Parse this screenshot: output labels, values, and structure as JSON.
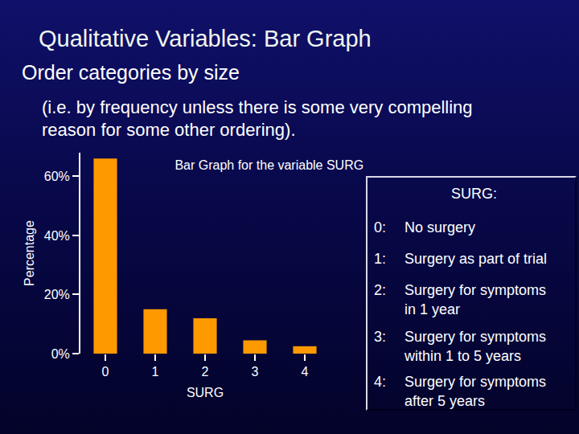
{
  "slide": {
    "heading": "Qualitative Variables: Bar Graph",
    "subheading": "Order categories by size",
    "note": "(i.e. by frequency unless there is some very compelling reason for some other ordering)."
  },
  "key": {
    "title": "SURG:",
    "items": [
      {
        "code": "0:",
        "label": "No surgery"
      },
      {
        "code": "1:",
        "label": "Surgery as part of trial"
      },
      {
        "code": "2:",
        "label": "Surgery for symptoms in 1 year"
      },
      {
        "code": "3:",
        "label": "Surgery for symptoms within 1 to 5 years"
      },
      {
        "code": "4:",
        "label": "Surgery for symptoms after 5 years"
      }
    ]
  },
  "chart_data": {
    "type": "bar",
    "title": "Bar Graph for the variable SURG",
    "x_label": "SURG",
    "y_label": "Percentage",
    "categories": [
      "0",
      "1",
      "2",
      "3",
      "4"
    ],
    "values": [
      66,
      15,
      12,
      4.5,
      2.5
    ],
    "color": "#ff9900",
    "ylim": [
      0,
      68
    ],
    "yticks": [
      {
        "value": 0,
        "label": "0%"
      },
      {
        "value": 20,
        "label": "20%"
      },
      {
        "value": 40,
        "label": "40%"
      },
      {
        "value": 60,
        "label": "60%"
      }
    ],
    "grid": false
  }
}
